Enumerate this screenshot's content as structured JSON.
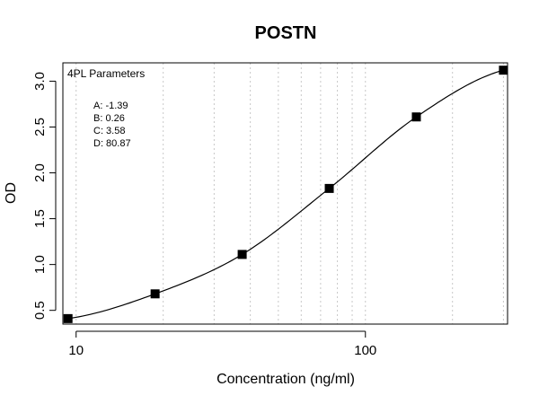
{
  "chart_data": {
    "type": "scatter",
    "title": "POSTN",
    "xlabel": "Concentration (ng/ml)",
    "ylabel": "OD",
    "x_scale": "log",
    "xlim": [
      9.0,
      310.0
    ],
    "ylim": [
      0.35,
      3.2
    ],
    "x_ticks": [
      10,
      100
    ],
    "x_tick_labels": [
      "10",
      "100"
    ],
    "y_ticks": [
      0.5,
      1.0,
      1.5,
      2.0,
      2.5,
      3.0
    ],
    "y_tick_labels": [
      "0.5",
      "1.0",
      "1.5",
      "2.0",
      "2.5",
      "3.0"
    ],
    "x_grid": [
      10,
      20,
      30,
      40,
      50,
      60,
      70,
      80,
      90,
      100,
      200,
      300
    ],
    "grid": "vertical dotted",
    "series": [
      {
        "x": [
          9.375,
          18.75,
          37.5,
          75,
          150,
          300
        ],
        "y": [
          0.41,
          0.68,
          1.11,
          1.83,
          2.61,
          3.12
        ],
        "marker": "square",
        "color": "#000000"
      }
    ],
    "fit": {
      "model": "4PL",
      "A": -1.39,
      "B": 0.26,
      "C": 3.58,
      "D": 80.87
    },
    "annotation": {
      "header": "4PL Parameters",
      "lines": [
        "A: -1.39",
        "B: 0.26",
        "C: 3.58",
        "D: 80.87"
      ]
    }
  }
}
